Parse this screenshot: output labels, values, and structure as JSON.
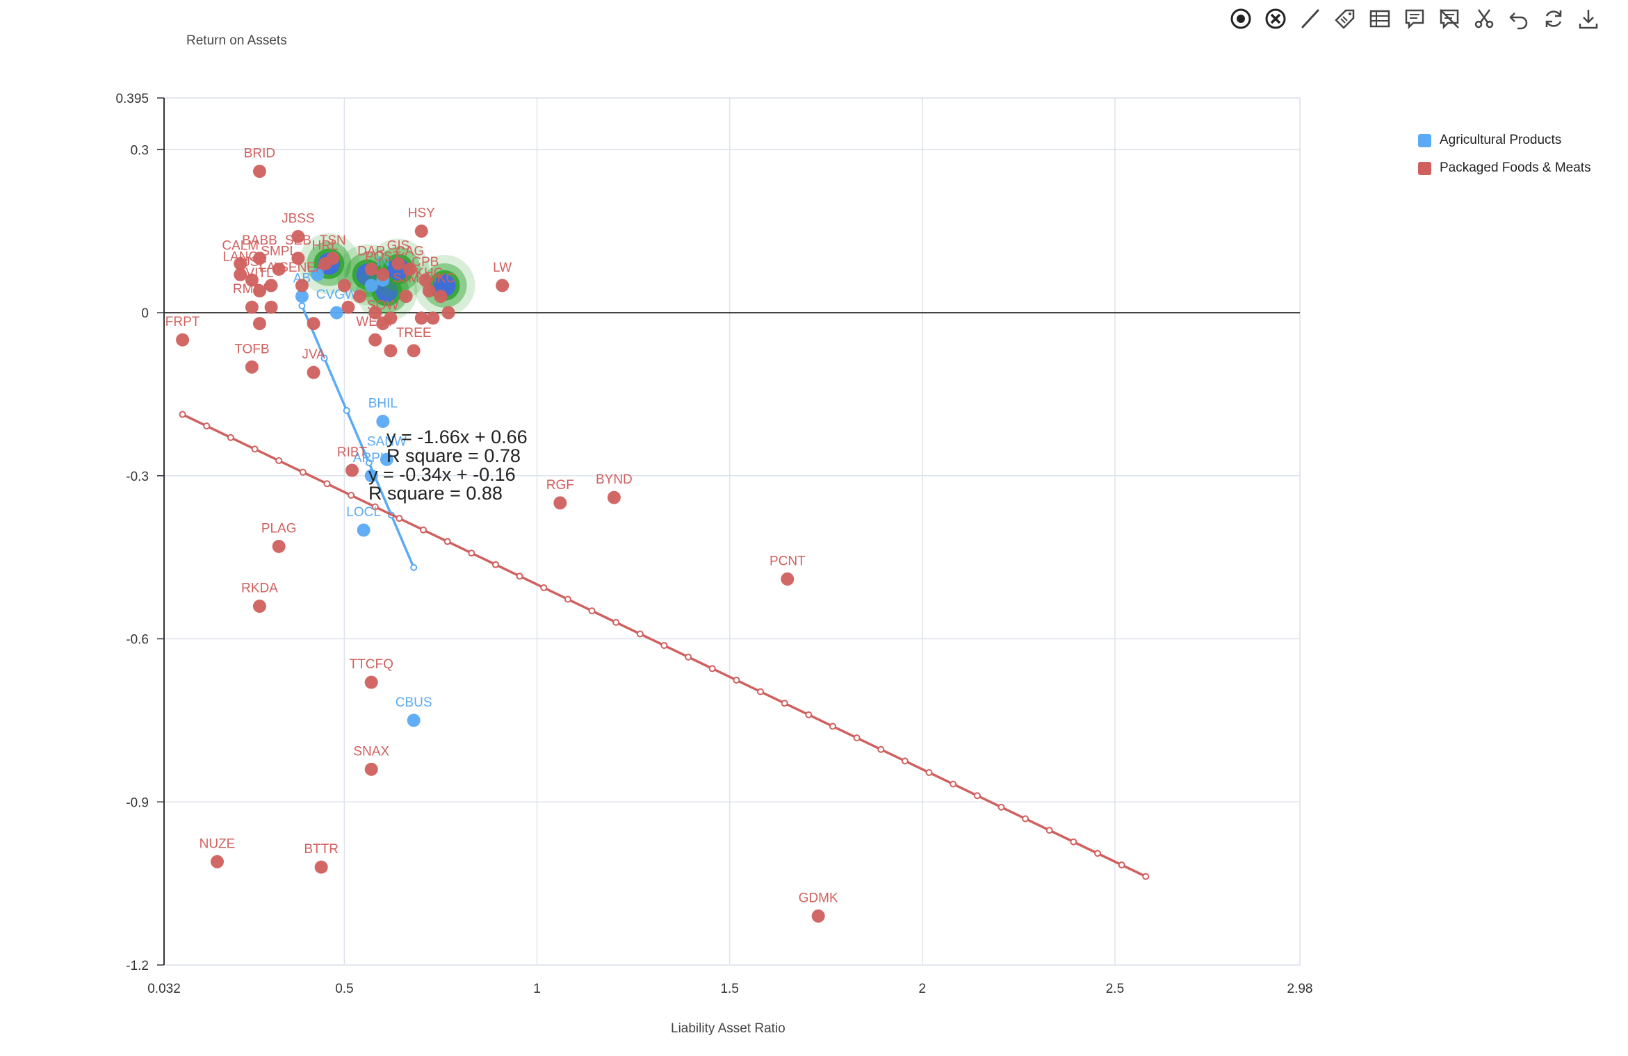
{
  "toolbar": {
    "icons": [
      "target-icon",
      "close-circle-icon",
      "line-icon",
      "tag-icon",
      "table-icon",
      "comment-icon",
      "no-comment-icon",
      "scissors-icon",
      "undo-icon",
      "refresh-icon",
      "download-icon"
    ]
  },
  "colors": {
    "agri": "#5aaaf5",
    "food": "#d0605e",
    "grid": "#dde3ec",
    "axis": "#333333",
    "highlight": "#2ea12e"
  },
  "chart_data": {
    "type": "scatter",
    "xlabel": "Liability Asset Ratio",
    "ylabel": "Return on Assets",
    "xlim": [
      0.032,
      2.98
    ],
    "ylim": [
      -1.2,
      0.395
    ],
    "xticks": [
      "0.032",
      "0.5",
      "1",
      "1.5",
      "2",
      "2.5",
      "2.98"
    ],
    "xtick_values": [
      0.032,
      0.5,
      1,
      1.5,
      2,
      2.5,
      2.98
    ],
    "yticks": [
      "0.395",
      "0.3",
      "0",
      "-0.3",
      "-0.6",
      "-0.9",
      "-1.2"
    ],
    "ytick_values": [
      0.395,
      0.3,
      0,
      -0.3,
      -0.6,
      -0.9,
      -1.2
    ],
    "grid": true,
    "legend_position": "top-right",
    "series": [
      {
        "name": "Agricultural Products",
        "color": "#5aaaf5",
        "points": [
          {
            "label": "BHIL",
            "x": 0.6,
            "y": -0.2
          },
          {
            "label": "SANW",
            "x": 0.61,
            "y": -0.27
          },
          {
            "label": "ARPH",
            "x": 0.57,
            "y": -0.3
          },
          {
            "label": "LOCL",
            "x": 0.55,
            "y": -0.4
          },
          {
            "label": "CBUS",
            "x": 0.68,
            "y": -0.75
          },
          {
            "label": "AB",
            "x": 0.39,
            "y": 0.03
          },
          {
            "label": "CVGW",
            "x": 0.48,
            "y": 0.0
          },
          {
            "label": "IN",
            "x": 0.6,
            "y": 0.06
          },
          {
            "label": "",
            "x": 0.43,
            "y": 0.07
          },
          {
            "label": "",
            "x": 0.57,
            "y": 0.05
          }
        ],
        "trend": {
          "x0": 0.39,
          "x1": 0.68,
          "slope": -1.66,
          "intercept": 0.66,
          "equation": "y = -1.66x + 0.66",
          "r2_label": "R square = 0.78"
        }
      },
      {
        "name": "Packaged Foods & Meats",
        "color": "#d0605e",
        "points": [
          {
            "label": "BRID",
            "x": 0.28,
            "y": 0.26
          },
          {
            "label": "HSY",
            "x": 0.7,
            "y": 0.15
          },
          {
            "label": "JBSS",
            "x": 0.38,
            "y": 0.14
          },
          {
            "label": "BABB",
            "x": 0.28,
            "y": 0.1
          },
          {
            "label": "CALM",
            "x": 0.23,
            "y": 0.09
          },
          {
            "label": "LANC",
            "x": 0.23,
            "y": 0.07
          },
          {
            "label": "JJSF",
            "x": 0.26,
            "y": 0.06
          },
          {
            "label": "VITL",
            "x": 0.28,
            "y": 0.04
          },
          {
            "label": "LAY",
            "x": 0.31,
            "y": 0.05
          },
          {
            "label": "RMCF",
            "x": 0.26,
            "y": 0.01
          },
          {
            "label": "",
            "x": 0.31,
            "y": 0.01
          },
          {
            "label": "SEB",
            "x": 0.38,
            "y": 0.1
          },
          {
            "label": "SENEA",
            "x": 0.39,
            "y": 0.05
          },
          {
            "label": "SMPL",
            "x": 0.33,
            "y": 0.08
          },
          {
            "label": "TSN",
            "x": 0.47,
            "y": 0.1
          },
          {
            "label": "HRL",
            "x": 0.45,
            "y": 0.09
          },
          {
            "label": "DAR",
            "x": 0.57,
            "y": 0.08
          },
          {
            "label": "POST",
            "x": 0.6,
            "y": 0.07
          },
          {
            "label": "GIS",
            "x": 0.64,
            "y": 0.09
          },
          {
            "label": "CAG",
            "x": 0.67,
            "y": 0.08
          },
          {
            "label": "CPB",
            "x": 0.71,
            "y": 0.06
          },
          {
            "label": "LW",
            "x": 0.91,
            "y": 0.05
          },
          {
            "label": "SJM",
            "x": 0.66,
            "y": 0.03
          },
          {
            "label": "KHC",
            "x": 0.72,
            "y": 0.04
          },
          {
            "label": "MKC",
            "x": 0.75,
            "y": 0.03
          },
          {
            "label": "",
            "x": 0.5,
            "y": 0.05
          },
          {
            "label": "",
            "x": 0.51,
            "y": 0.01
          },
          {
            "label": "",
            "x": 0.54,
            "y": 0.03
          },
          {
            "label": "",
            "x": 0.58,
            "y": 0.0
          },
          {
            "label": "",
            "x": 0.62,
            "y": -0.01
          },
          {
            "label": "",
            "x": 0.7,
            "y": -0.01
          },
          {
            "label": "",
            "x": 0.73,
            "y": -0.01
          },
          {
            "label": "",
            "x": 0.77,
            "y": 0.0
          },
          {
            "label": "SOW",
            "x": 0.6,
            "y": -0.02
          },
          {
            "label": "WEST",
            "x": 0.58,
            "y": -0.05
          },
          {
            "label": "TREE",
            "x": 0.68,
            "y": -0.07
          },
          {
            "label": "",
            "x": 0.62,
            "y": -0.07
          },
          {
            "label": "FRPT",
            "x": 0.08,
            "y": -0.05
          },
          {
            "label": "TOFB",
            "x": 0.26,
            "y": -0.1
          },
          {
            "label": "",
            "x": 0.28,
            "y": -0.02
          },
          {
            "label": "",
            "x": 0.42,
            "y": -0.02
          },
          {
            "label": "JVA",
            "x": 0.42,
            "y": -0.11
          },
          {
            "label": "RIBT",
            "x": 0.52,
            "y": -0.29
          },
          {
            "label": "RGF",
            "x": 1.06,
            "y": -0.35
          },
          {
            "label": "BYND",
            "x": 1.2,
            "y": -0.34
          },
          {
            "label": "PLAG",
            "x": 0.33,
            "y": -0.43
          },
          {
            "label": "RKDA",
            "x": 0.28,
            "y": -0.54
          },
          {
            "label": "PCNT",
            "x": 1.65,
            "y": -0.49
          },
          {
            "label": "TTCFQ",
            "x": 0.57,
            "y": -0.68
          },
          {
            "label": "SNAX",
            "x": 0.57,
            "y": -0.84
          },
          {
            "label": "NUZE",
            "x": 0.17,
            "y": -1.01
          },
          {
            "label": "BTTR",
            "x": 0.44,
            "y": -1.02
          },
          {
            "label": "GDMK",
            "x": 1.73,
            "y": -1.11
          }
        ],
        "trend": {
          "x0": 0.08,
          "x1": 2.58,
          "slope": -0.34,
          "intercept": -0.16,
          "equation": "y = -0.34x + -0.16",
          "r2_label": "R square = 0.88"
        }
      }
    ],
    "highlighted_points": [
      {
        "x": 0.46,
        "y": 0.09
      },
      {
        "x": 0.56,
        "y": 0.07
      },
      {
        "x": 0.61,
        "y": 0.04
      },
      {
        "x": 0.64,
        "y": 0.08
      },
      {
        "x": 0.76,
        "y": 0.05
      }
    ]
  }
}
